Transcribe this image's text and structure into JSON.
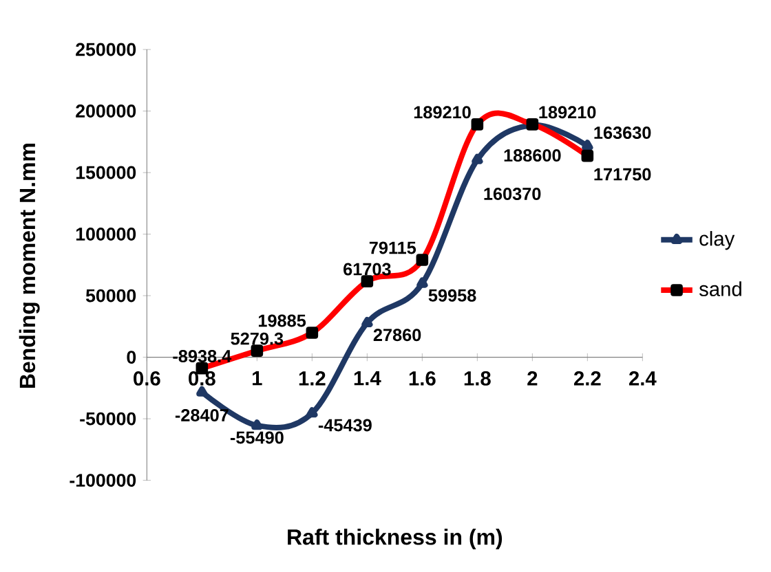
{
  "chart_data": {
    "type": "line",
    "xlabel": "Raft thickness in (m)",
    "ylabel": "Bending moment N.mm",
    "x": [
      0.8,
      1,
      1.2,
      1.4,
      1.6,
      1.8,
      2,
      2.2
    ],
    "series": [
      {
        "name": "clay",
        "color": "#1f3864",
        "marker": "triangle",
        "values": [
          -28407,
          -55490,
          -45439,
          27860,
          59958,
          160370,
          188600,
          171750
        ]
      },
      {
        "name": "sand",
        "color": "#ff0000",
        "marker": "square",
        "values": [
          -8938.4,
          5279.3,
          19885,
          61703,
          79115,
          189210,
          189210,
          163630
        ]
      }
    ],
    "xlim": [
      0.6,
      2.4
    ],
    "xticks": [
      0.6,
      0.8,
      1,
      1.2,
      1.4,
      1.6,
      1.8,
      2,
      2.2,
      2.4
    ],
    "ylim": [
      -100000,
      250000
    ],
    "yticks": [
      -100000,
      -50000,
      0,
      50000,
      100000,
      150000,
      200000,
      250000
    ],
    "data_labels": true,
    "legend": "right",
    "grid": false
  }
}
